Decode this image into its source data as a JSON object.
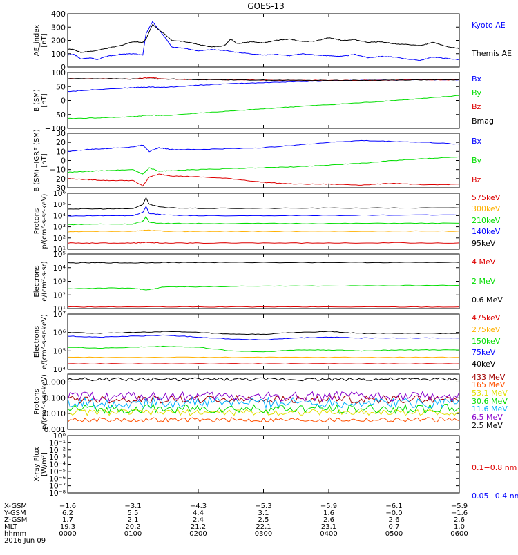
{
  "title": "GOES-13",
  "colors": {
    "black": "#000000",
    "blue": "#0000ff",
    "red": "#dd0000",
    "green": "#00dd00",
    "orange": "#ffb000",
    "cyan": "#00b0ff",
    "yellow": "#e0e000",
    "purple": "#8800cc",
    "darkred": "#a00000",
    "orangered": "#ff5000"
  },
  "chart_data": [
    {
      "type": "line",
      "id": "ae",
      "ylabel": [
        "AE_index",
        "[nT]"
      ],
      "ylim": [
        0,
        400
      ],
      "yticks": [
        "0",
        "100",
        "200",
        "300",
        "400"
      ],
      "yscale": "linear",
      "series": [
        {
          "name": "Kyoto AE",
          "color": "#0000ff",
          "x": [
            0,
            0.1,
            0.2,
            0.35,
            0.45,
            0.6,
            0.8,
            1.0,
            1.15,
            1.2,
            1.3,
            1.45,
            1.6,
            1.8,
            2.0,
            2.2,
            2.4,
            2.6,
            2.8,
            3.0,
            3.2,
            3.4,
            3.6,
            3.8,
            4.0,
            4.2,
            4.4,
            4.6,
            4.8,
            5.0,
            5.2,
            5.4,
            5.6,
            5.8,
            6.0
          ],
          "values": [
            90,
            95,
            60,
            70,
            55,
            80,
            95,
            100,
            90,
            250,
            340,
            250,
            150,
            140,
            120,
            130,
            125,
            110,
            100,
            90,
            95,
            85,
            100,
            90,
            85,
            80,
            95,
            70,
            80,
            75,
            60,
            50,
            75,
            65,
            55
          ]
        },
        {
          "name": "Themis AE",
          "color": "#000000",
          "x": [
            0,
            0.1,
            0.2,
            0.4,
            0.6,
            0.8,
            1.0,
            1.15,
            1.2,
            1.3,
            1.45,
            1.6,
            1.8,
            2.0,
            2.2,
            2.4,
            2.5,
            2.6,
            2.8,
            3.0,
            3.2,
            3.4,
            3.6,
            3.8,
            4.0,
            4.2,
            4.4,
            4.6,
            4.8,
            5.0,
            5.2,
            5.4,
            5.6,
            5.8,
            6.0
          ],
          "values": [
            135,
            130,
            110,
            120,
            140,
            160,
            190,
            185,
            210,
            320,
            260,
            200,
            190,
            170,
            150,
            160,
            210,
            175,
            190,
            180,
            200,
            210,
            190,
            195,
            220,
            200,
            205,
            185,
            190,
            175,
            170,
            160,
            185,
            155,
            140
          ]
        }
      ]
    },
    {
      "type": "line",
      "id": "b_sm",
      "ylabel": [
        "B (SM)",
        "[nT]"
      ],
      "ylim": [
        -100,
        100
      ],
      "yticks": [
        "−100",
        "−50",
        "0",
        "50",
        "100"
      ],
      "yscale": "linear",
      "series": [
        {
          "name": "Bx",
          "color": "#0000ff",
          "x": [
            0,
            0.5,
            1.0,
            1.25,
            1.5,
            2,
            2.5,
            3,
            3.5,
            4,
            4.5,
            5,
            5.5,
            6
          ],
          "values": [
            32,
            40,
            46,
            48,
            47,
            55,
            60,
            64,
            67,
            70,
            72,
            73,
            74,
            74
          ]
        },
        {
          "name": "By",
          "color": "#00dd00",
          "x": [
            0,
            0.5,
            1.0,
            1.25,
            1.5,
            2,
            2.5,
            3,
            3.5,
            4,
            4.5,
            5,
            5.5,
            6
          ],
          "values": [
            -65,
            -62,
            -58,
            -52,
            -54,
            -45,
            -38,
            -30,
            -22,
            -15,
            -8,
            0,
            8,
            18
          ]
        },
        {
          "name": "Bz",
          "color": "#dd0000",
          "x": [
            0,
            0.5,
            1.0,
            1.25,
            1.5,
            2,
            2.5,
            3,
            3.5,
            4,
            4.5,
            5,
            5.5,
            6
          ],
          "values": [
            78,
            78,
            77,
            82,
            77,
            75,
            74,
            73,
            72,
            72,
            72,
            73,
            74,
            74
          ]
        },
        {
          "name": "Bmag",
          "color": "#000000",
          "x": [
            0,
            0.5,
            1.0,
            1.5,
            2,
            2.5,
            3,
            3.5,
            4,
            4.5,
            5,
            5.5,
            6
          ],
          "values": [
            78,
            78,
            77,
            77,
            75,
            74,
            73,
            72,
            72,
            72,
            73,
            74,
            74
          ]
        }
      ]
    },
    {
      "type": "line",
      "id": "b_igrf",
      "ylabel": [
        "B (SM)−IGRF (SM)",
        "[nT]"
      ],
      "ylim": [
        -30,
        30
      ],
      "yticks": [
        "−30",
        "−20",
        "−10",
        "0",
        "10",
        "20",
        "30"
      ],
      "yscale": "linear",
      "series": [
        {
          "name": "Bx",
          "color": "#0000ff",
          "x": [
            0,
            0.3,
            0.6,
            1.0,
            1.15,
            1.25,
            1.4,
            1.6,
            2,
            2.5,
            3,
            3.5,
            4,
            4.5,
            5,
            5.5,
            6
          ],
          "values": [
            10,
            12,
            13,
            15,
            17,
            10,
            14,
            12,
            12,
            13,
            14,
            17,
            20,
            22,
            21,
            20,
            18
          ]
        },
        {
          "name": "By",
          "color": "#00dd00",
          "x": [
            0,
            0.3,
            0.6,
            1.0,
            1.15,
            1.25,
            1.4,
            1.6,
            2,
            2.5,
            3,
            3.5,
            4,
            4.5,
            5,
            5.5,
            6
          ],
          "values": [
            -13,
            -12,
            -11,
            -10,
            -15,
            -8,
            -12,
            -11,
            -10,
            -9,
            -8,
            -7,
            -5,
            -3,
            0,
            2,
            4
          ]
        },
        {
          "name": "Bz",
          "color": "#dd0000",
          "x": [
            0,
            0.3,
            0.6,
            1.0,
            1.15,
            1.25,
            1.4,
            1.6,
            2,
            2.5,
            3,
            3.5,
            4,
            4.5,
            5,
            5.5,
            6
          ],
          "values": [
            -20,
            -21,
            -22,
            -22,
            -28,
            -18,
            -15,
            -17,
            -18,
            -20,
            -24,
            -26,
            -26,
            -27,
            -25,
            -27,
            -26
          ]
        }
      ]
    },
    {
      "type": "line",
      "id": "protons_low",
      "ylabel": [
        "Protons",
        "p/(cm²-s-sr-keV)"
      ],
      "ylim": [
        1,
        6
      ],
      "yticks": [
        "10¹",
        "10²",
        "10³",
        "10⁴",
        "10⁵",
        "10⁶"
      ],
      "yscale": "log",
      "series": [
        {
          "name": "575keV",
          "color": "#dd0000",
          "x": [
            0,
            0.5,
            1.0,
            1.2,
            1.5,
            2,
            3,
            4,
            5,
            6
          ],
          "values": [
            1.55,
            1.55,
            1.56,
            1.6,
            1.55,
            1.55,
            1.56,
            1.55,
            1.57,
            1.56
          ]
        },
        {
          "name": "300keV",
          "color": "#ffb000",
          "x": [
            0,
            0.5,
            1.0,
            1.2,
            1.5,
            2,
            3,
            4,
            5,
            6
          ],
          "values": [
            2.55,
            2.6,
            2.6,
            2.7,
            2.6,
            2.6,
            2.6,
            2.6,
            2.62,
            2.62
          ]
        },
        {
          "name": "210keV",
          "color": "#00dd00",
          "x": [
            0,
            0.5,
            1.0,
            1.15,
            1.2,
            1.25,
            1.5,
            2,
            3,
            4,
            5,
            6
          ],
          "values": [
            3.2,
            3.25,
            3.25,
            3.5,
            3.9,
            3.4,
            3.3,
            3.3,
            3.3,
            3.3,
            3.32,
            3.32
          ]
        },
        {
          "name": "140keV",
          "color": "#0000ff",
          "x": [
            0,
            0.5,
            1.0,
            1.15,
            1.2,
            1.25,
            1.5,
            2,
            3,
            4,
            5,
            6
          ],
          "values": [
            3.95,
            4,
            4,
            4.3,
            4.8,
            4.2,
            4.05,
            4.0,
            4.0,
            4.02,
            4.05,
            4.05
          ]
        },
        {
          "name": "95keV",
          "color": "#000000",
          "x": [
            0,
            0.5,
            1.0,
            1.15,
            1.2,
            1.25,
            1.5,
            2,
            3,
            4,
            5,
            6
          ],
          "values": [
            4.6,
            4.6,
            4.62,
            5.0,
            5.6,
            5.0,
            4.7,
            4.65,
            4.65,
            4.67,
            4.68,
            4.68
          ]
        }
      ]
    },
    {
      "type": "line",
      "id": "electrons_high",
      "ylabel": [
        "Electrons",
        "e/(cm²-s-sr)"
      ],
      "ylim": [
        1,
        5
      ],
      "yticks": [
        "10¹",
        "10²",
        "10³",
        "10⁴",
        "10⁵"
      ],
      "yscale": "log",
      "series": [
        {
          "name": "4 MeV",
          "color": "#dd0000",
          "x": [
            0,
            1,
            2,
            3,
            4,
            5,
            6
          ],
          "values": [
            1.12,
            1.12,
            1.12,
            1.12,
            1.12,
            1.12,
            1.12
          ]
        },
        {
          "name": "2 MeV",
          "color": "#00dd00",
          "x": [
            0,
            0.5,
            1.0,
            1.2,
            1.5,
            2,
            3,
            4,
            5,
            6
          ],
          "values": [
            2.45,
            2.5,
            2.5,
            2.35,
            2.6,
            2.6,
            2.65,
            2.65,
            2.68,
            2.7
          ]
        },
        {
          "name": "0.6 MeV",
          "color": "#000000",
          "x": [
            0,
            0.5,
            1.0,
            1.5,
            2,
            3,
            4,
            5,
            6
          ],
          "values": [
            4.35,
            4.36,
            4.35,
            4.38,
            4.38,
            4.38,
            4.38,
            4.38,
            4.38
          ]
        }
      ]
    },
    {
      "type": "line",
      "id": "electrons_low",
      "ylabel": [
        "Electrons",
        "e/(cm²-s-sr-keV)"
      ],
      "ylim": [
        4,
        7
      ],
      "yticks": [
        "10⁴",
        "10⁵",
        "10⁶",
        "10⁷"
      ],
      "yscale": "log",
      "series": [
        {
          "name": "475keV",
          "color": "#dd0000",
          "x": [
            0,
            1,
            2,
            3,
            4,
            5,
            6
          ],
          "values": [
            4.3,
            4.3,
            4.3,
            4.3,
            4.3,
            4.3,
            4.3
          ]
        },
        {
          "name": "275keV",
          "color": "#ffb000",
          "x": [
            0,
            1,
            2,
            3,
            4,
            5,
            6
          ],
          "values": [
            4.65,
            4.65,
            4.65,
            4.65,
            4.65,
            4.65,
            4.65
          ]
        },
        {
          "name": "150keV",
          "color": "#00dd00",
          "x": [
            0,
            0.5,
            1,
            1.5,
            2,
            2.5,
            3,
            3.5,
            4,
            4.5,
            5,
            5.5,
            6
          ],
          "values": [
            5.2,
            5.15,
            5.2,
            5.25,
            5.2,
            5.0,
            4.95,
            5.05,
            5.05,
            5.0,
            5.05,
            5.05,
            5.05
          ]
        },
        {
          "name": "75keV",
          "color": "#0000ff",
          "x": [
            0,
            0.5,
            1,
            1.5,
            2,
            2.5,
            3,
            3.5,
            4,
            4.5,
            5,
            5.5,
            6
          ],
          "values": [
            5.8,
            5.75,
            5.8,
            5.85,
            5.75,
            5.65,
            5.6,
            5.7,
            5.75,
            5.7,
            5.7,
            5.7,
            5.7
          ]
        },
        {
          "name": "40keV",
          "color": "#000000",
          "x": [
            0,
            0.5,
            1,
            1.5,
            2,
            2.5,
            3,
            3.5,
            4,
            4.5,
            5,
            5.5,
            6
          ],
          "values": [
            6.0,
            5.95,
            6.0,
            6.05,
            6.0,
            5.9,
            5.9,
            6.0,
            6.05,
            5.95,
            5.95,
            5.95,
            5.95
          ]
        }
      ]
    },
    {
      "type": "line",
      "id": "protons_high",
      "ylabel": [
        "Protons",
        "p/(cm²-s-sr-keV)"
      ],
      "ylim": [
        -3,
        0.5
      ],
      "yticks": [
        "0.001",
        "0.010",
        "0.100",
        "1.000"
      ],
      "yscale": "log",
      "noisy": true,
      "series": [
        {
          "name": "433 MeV",
          "color": "#a00000",
          "level": 0.08,
          "amp": 0.25
        },
        {
          "name": "165 MeV",
          "color": "#ff5000",
          "level": 0.004,
          "amp": 0.15
        },
        {
          "name": "53.1 MeV",
          "color": "#e0e000",
          "level": 0.012,
          "amp": 0.2
        },
        {
          "name": "30.6 MeV",
          "color": "#00dd00",
          "level": 0.02,
          "amp": 0.3
        },
        {
          "name": "11.6 MeV",
          "color": "#00b0ff",
          "level": 0.05,
          "amp": 0.35
        },
        {
          "name": "6.5 MeV",
          "color": "#8800cc",
          "level": 0.12,
          "amp": 0.3
        },
        {
          "name": "2.5 MeV",
          "color": "#000000",
          "level": 1.5,
          "amp": 0.1
        }
      ]
    },
    {
      "type": "line",
      "id": "xray",
      "ylabel": [
        "X-ray Flux",
        "[W/m²]"
      ],
      "ylim": [
        -8,
        0
      ],
      "yticks": [
        "10⁻⁸",
        "10⁻⁷",
        "10⁻⁶",
        "10⁻⁵",
        "10⁻⁴",
        "10⁻³",
        "10⁻²",
        "10⁻¹",
        "10⁰"
      ],
      "yscale": "log",
      "series": [
        {
          "name": "0.1−0.8 nm",
          "color": "#dd0000"
        },
        {
          "name": "0.05−0.4 nm",
          "color": "#0000ff"
        }
      ]
    }
  ],
  "orbit": {
    "labels": [
      "X-GSM",
      "Y-GSM",
      "Z-GSM",
      "MLT",
      "hhmm"
    ],
    "columns": [
      [
        "−1.6",
        "6.2",
        "1.7",
        "19.3",
        "0000"
      ],
      [
        "−3.1",
        "5.5",
        "2.1",
        "20.2",
        "0100"
      ],
      [
        "−4.3",
        "4.4",
        "2.4",
        "21.2",
        "0200"
      ],
      [
        "−5.3",
        "3.1",
        "2.5",
        "22.1",
        "0300"
      ],
      [
        "−5.9",
        "1.6",
        "2.6",
        "23.1",
        "0400"
      ],
      [
        "−6.1",
        "−0.0",
        "2.6",
        "0.7",
        "0500"
      ],
      [
        "−5.9",
        "−1.6",
        "2.6",
        "1.0",
        "0600"
      ]
    ],
    "date": "2016 Jun 09"
  }
}
